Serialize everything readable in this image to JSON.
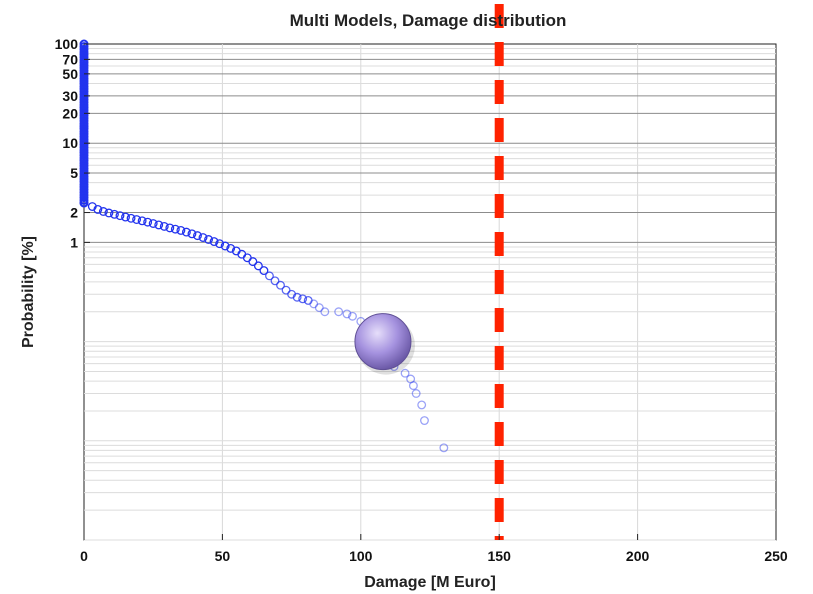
{
  "chart_data": {
    "type": "scatter",
    "title": "Multi Models, Damage distribution",
    "xlabel": "Damage [M Euro]",
    "ylabel": "Probability [%]",
    "xlim": [
      0,
      250
    ],
    "ylim": [
      0.001,
      100
    ],
    "yscale": "log",
    "xticks": [
      0,
      50,
      100,
      150,
      200,
      250
    ],
    "yticks": [
      1,
      2,
      5,
      10,
      20,
      30,
      50,
      70,
      100
    ],
    "grid": true,
    "colors": {
      "points": "#2233ee",
      "threshold": "#ff2200",
      "marker": "#9a86d8"
    },
    "series": [
      {
        "style": "circles",
        "points": [
          [
            0,
            2.5
          ],
          [
            3,
            2.3
          ],
          [
            5,
            2.15
          ],
          [
            7,
            2.05
          ],
          [
            9,
            1.98
          ],
          [
            11,
            1.92
          ],
          [
            13,
            1.86
          ],
          [
            15,
            1.8
          ],
          [
            17,
            1.75
          ],
          [
            19,
            1.7
          ],
          [
            21,
            1.65
          ],
          [
            23,
            1.6
          ],
          [
            25,
            1.55
          ],
          [
            27,
            1.5
          ],
          [
            29,
            1.45
          ],
          [
            31,
            1.4
          ],
          [
            33,
            1.36
          ],
          [
            35,
            1.32
          ],
          [
            37,
            1.27
          ],
          [
            39,
            1.22
          ],
          [
            41,
            1.17
          ],
          [
            43,
            1.12
          ],
          [
            45,
            1.07
          ],
          [
            47,
            1.02
          ],
          [
            49,
            0.97
          ],
          [
            51,
            0.92
          ],
          [
            53,
            0.87
          ],
          [
            55,
            0.82
          ],
          [
            57,
            0.76
          ],
          [
            59,
            0.7
          ],
          [
            61,
            0.64
          ],
          [
            63,
            0.58
          ],
          [
            65,
            0.52
          ],
          [
            67,
            0.46
          ],
          [
            69,
            0.41
          ],
          [
            71,
            0.37
          ],
          [
            73,
            0.33
          ],
          [
            75,
            0.3
          ],
          [
            77,
            0.28
          ],
          [
            79,
            0.27
          ],
          [
            81,
            0.26
          ],
          [
            83,
            0.24
          ],
          [
            85,
            0.22
          ],
          [
            87,
            0.2
          ],
          [
            92,
            0.2
          ],
          [
            95,
            0.19
          ],
          [
            97,
            0.18
          ],
          [
            100,
            0.16
          ],
          [
            103,
            0.1
          ],
          [
            106,
            0.072
          ],
          [
            112,
            0.056
          ],
          [
            116,
            0.048
          ],
          [
            118,
            0.042
          ],
          [
            119,
            0.036
          ],
          [
            120,
            0.03
          ],
          [
            122,
            0.023
          ],
          [
            123,
            0.016
          ],
          [
            130,
            0.0085
          ]
        ],
        "vertical_start": {
          "x": 0,
          "y_from": 2.5,
          "y_to": 100
        }
      }
    ],
    "annotations": [
      {
        "type": "vline",
        "x": 150,
        "style": "dashed"
      },
      {
        "type": "marker",
        "x": 108,
        "y": 0.1,
        "shape": "sphere"
      }
    ]
  }
}
